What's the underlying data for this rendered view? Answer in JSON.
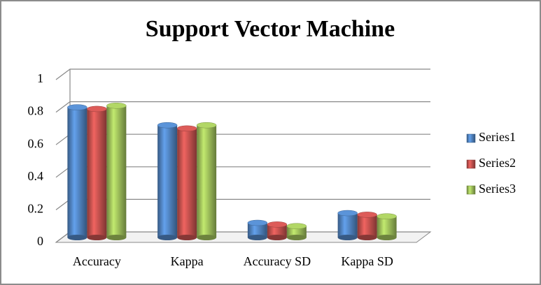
{
  "chart_data": {
    "type": "bar",
    "title": "Support Vector Machine",
    "categories": [
      "Accuracy",
      "Kappa",
      "Accuracy SD",
      "Kappa SD"
    ],
    "series": [
      {
        "name": "Series1",
        "color": "#4f81bd",
        "values": [
          0.8,
          0.69,
          0.09,
          0.15
        ]
      },
      {
        "name": "Series2",
        "color": "#c0504d",
        "values": [
          0.79,
          0.67,
          0.08,
          0.14
        ]
      },
      {
        "name": "Series3",
        "color": "#9bbb59",
        "values": [
          0.81,
          0.69,
          0.07,
          0.13
        ]
      }
    ],
    "ylim": [
      0,
      1
    ],
    "yticks": [
      0,
      0.2,
      0.4,
      0.6,
      0.8,
      1
    ],
    "grid": true,
    "legend": "right"
  }
}
